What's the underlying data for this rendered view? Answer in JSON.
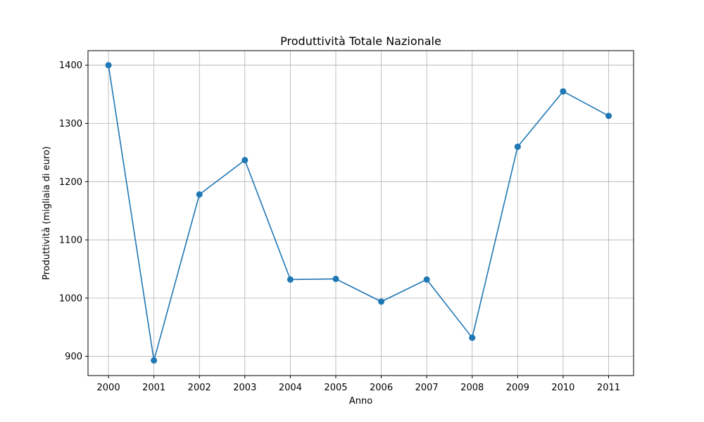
{
  "chart_data": {
    "type": "line",
    "title": "Produttività Totale Nazionale",
    "xlabel": "Anno",
    "ylabel": "Produttività (migliaia di euro)",
    "x": [
      2000,
      2001,
      2002,
      2003,
      2004,
      2005,
      2006,
      2007,
      2008,
      2009,
      2010,
      2011
    ],
    "x_ticks": [
      "2000",
      "2001",
      "2002",
      "2003",
      "2004",
      "2005",
      "2006",
      "2007",
      "2008",
      "2009",
      "2010",
      "2011"
    ],
    "y_ticks": [
      900,
      1000,
      1100,
      1200,
      1300,
      1400
    ],
    "xlim": [
      1999.55,
      2011.55
    ],
    "ylim": [
      867,
      1425
    ],
    "grid": true,
    "marker": "circle",
    "color": "#1f77b4",
    "series": [
      {
        "values": [
          1400,
          893,
          1178,
          1237,
          1032,
          1033,
          994,
          1032,
          932,
          1260,
          1355,
          1313
        ]
      }
    ]
  }
}
